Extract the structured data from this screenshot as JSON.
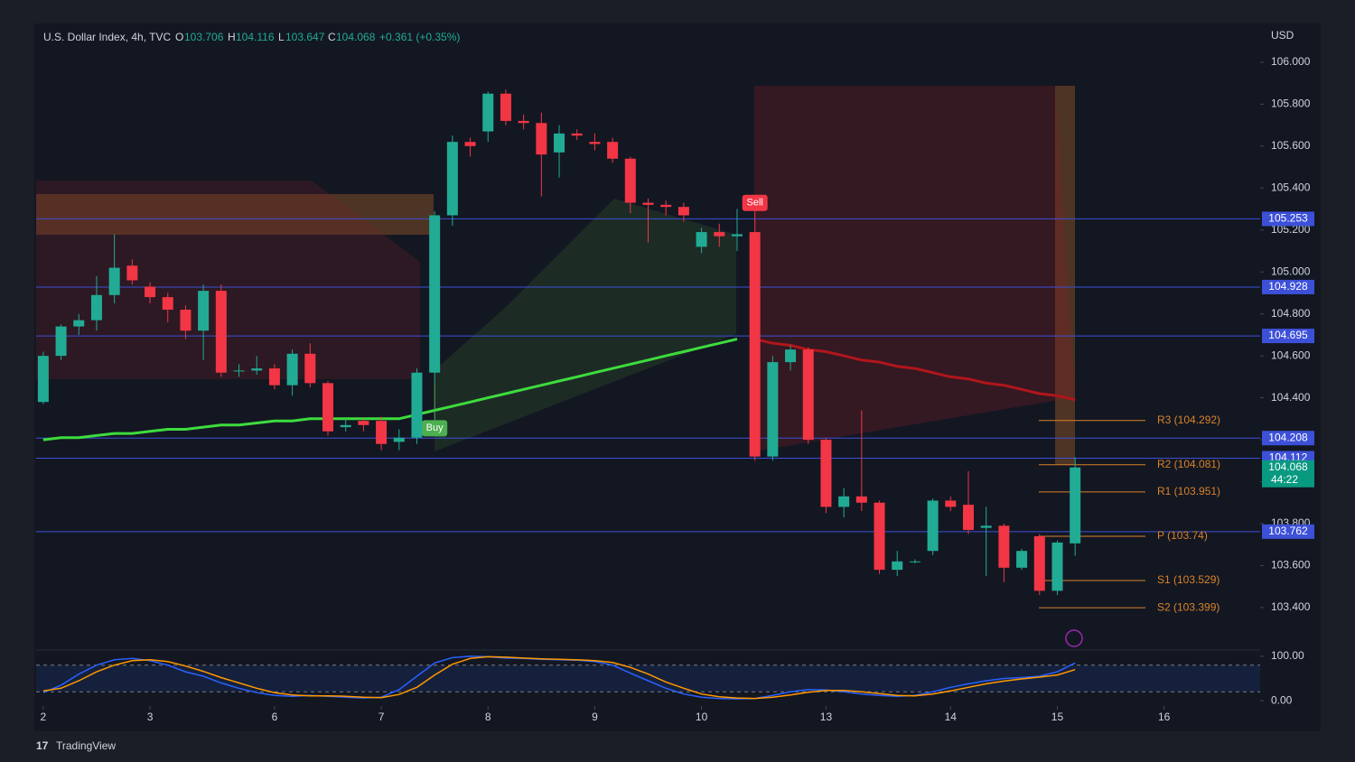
{
  "header": {
    "symbol": "U.S. Dollar Index, 4h, TVC",
    "open_label": "O",
    "open": "103.706",
    "high_label": "H",
    "high": "104.116",
    "low_label": "L",
    "low": "103.647",
    "close_label": "C",
    "close": "104.068",
    "change": "+0.361 (+0.35%)"
  },
  "footer": "TradingView",
  "chart_data": {
    "type": "candlestick",
    "currency": "USD",
    "up_color": "#22ab94",
    "down_color": "#f23645",
    "open": [
      104.38,
      104.6,
      104.74,
      104.77,
      104.89,
      105.03,
      104.93,
      104.88,
      104.82,
      104.72,
      104.91,
      104.53,
      104.53,
      104.54,
      104.46,
      104.61,
      104.47,
      104.26,
      104.29,
      104.29,
      104.19,
      104.21,
      104.52,
      105.27,
      105.62,
      105.67,
      105.85,
      105.72,
      105.71,
      105.57,
      105.66,
      105.62,
      105.62,
      105.54,
      105.33,
      105.32,
      105.31,
      105.12,
      105.19,
      105.17,
      105.19,
      104.12,
      104.57,
      104.63,
      104.2,
      103.88,
      103.93,
      103.9,
      103.58,
      103.62,
      103.67,
      103.91,
      103.89,
      103.78,
      103.79,
      103.59,
      103.74,
      103.48,
      103.706
    ],
    "high": [
      104.62,
      104.75,
      104.8,
      104.98,
      105.18,
      105.06,
      104.95,
      104.9,
      104.84,
      104.94,
      104.94,
      104.56,
      104.6,
      104.56,
      104.63,
      104.66,
      104.48,
      104.3,
      104.3,
      104.31,
      104.25,
      104.54,
      105.29,
      105.65,
      105.64,
      105.86,
      105.87,
      105.75,
      105.76,
      105.7,
      105.68,
      105.66,
      105.64,
      105.55,
      105.35,
      105.34,
      105.33,
      105.21,
      105.23,
      105.3,
      105.2,
      104.6,
      104.65,
      104.64,
      104.21,
      103.97,
      104.34,
      103.91,
      103.67,
      103.63,
      103.92,
      103.93,
      104.05,
      103.88,
      103.8,
      103.68,
      103.75,
      103.72,
      104.116
    ],
    "low": [
      104.37,
      104.58,
      104.7,
      104.72,
      104.85,
      104.94,
      104.85,
      104.76,
      104.68,
      104.58,
      104.5,
      104.5,
      104.51,
      104.44,
      104.41,
      104.45,
      104.22,
      104.24,
      104.24,
      104.15,
      104.15,
      104.18,
      104.47,
      105.22,
      105.55,
      105.62,
      105.7,
      105.68,
      105.36,
      105.45,
      105.63,
      105.58,
      105.52,
      105.28,
      105.14,
      105.27,
      105.24,
      105.09,
      105.12,
      105.1,
      104.1,
      104.1,
      104.53,
      104.18,
      103.85,
      103.83,
      103.86,
      103.56,
      103.55,
      103.61,
      103.65,
      103.86,
      103.75,
      103.55,
      103.52,
      103.58,
      103.46,
      103.46,
      103.647
    ],
    "close": [
      104.6,
      104.74,
      104.77,
      104.89,
      105.02,
      104.96,
      104.88,
      104.82,
      104.72,
      104.91,
      104.52,
      104.53,
      104.54,
      104.46,
      104.61,
      104.47,
      104.24,
      104.27,
      104.27,
      104.18,
      104.21,
      104.52,
      105.27,
      105.62,
      105.6,
      105.85,
      105.72,
      105.71,
      105.56,
      105.66,
      105.65,
      105.61,
      105.54,
      105.33,
      105.32,
      105.31,
      105.27,
      105.19,
      105.17,
      105.18,
      104.12,
      104.57,
      104.63,
      104.2,
      103.88,
      103.93,
      103.9,
      103.58,
      103.62,
      103.62,
      103.91,
      103.88,
      103.77,
      103.79,
      103.59,
      103.67,
      103.48,
      103.71,
      104.068
    ],
    "xlim": [
      -0.4,
      68.4
    ],
    "xticks": [
      {
        "value": 0,
        "label": "2"
      },
      {
        "value": 6,
        "label": "3"
      },
      {
        "value": 13,
        "label": "6"
      },
      {
        "value": 19,
        "label": "7"
      },
      {
        "value": 25,
        "label": "8"
      },
      {
        "value": 31,
        "label": "9"
      },
      {
        "value": 37,
        "label": "10"
      },
      {
        "value": 44,
        "label": "13"
      },
      {
        "value": 51,
        "label": "14"
      },
      {
        "value": 57,
        "label": "15"
      },
      {
        "value": 63,
        "label": "16"
      }
    ],
    "ylim": [
      103.206,
      106.176
    ],
    "yticks": [
      {
        "value": 103.4,
        "label": "103.400"
      },
      {
        "value": 103.6,
        "label": "103.600"
      },
      {
        "value": 103.8,
        "label": "103.800"
      },
      {
        "value": 104.0,
        "label": "104.000"
      },
      {
        "value": 104.2,
        "label": "104.200"
      },
      {
        "value": 104.4,
        "label": "104.400"
      },
      {
        "value": 104.6,
        "label": "104.600"
      },
      {
        "value": 104.8,
        "label": "104.800"
      },
      {
        "value": 105.0,
        "label": "105.000"
      },
      {
        "value": 105.2,
        "label": "105.200"
      },
      {
        "value": 105.4,
        "label": "105.400"
      },
      {
        "value": 105.6,
        "label": "105.600"
      },
      {
        "value": 105.8,
        "label": "105.800"
      },
      {
        "value": 106.0,
        "label": "106.000"
      }
    ],
    "series": [
      {
        "color": "#3ddc3d",
        "values": [
          104.2,
          104.21,
          104.21,
          104.22,
          104.23,
          104.23,
          104.24,
          104.25,
          104.25,
          104.26,
          104.27,
          104.27,
          104.28,
          104.29,
          104.29,
          104.3,
          104.3,
          104.3,
          104.3,
          104.3,
          104.3,
          104.32,
          104.34,
          104.36,
          104.38,
          104.4,
          104.42,
          104.44,
          104.46,
          104.48,
          104.5,
          104.52,
          104.54,
          104.56,
          104.58,
          104.6,
          104.62,
          104.64,
          104.66,
          104.68,
          null,
          null,
          null,
          null,
          null,
          null,
          null,
          null,
          null,
          null,
          null,
          null,
          null,
          null,
          null,
          null,
          null,
          null,
          null
        ]
      },
      {
        "color": "#b0161b",
        "values": [
          null,
          null,
          null,
          null,
          null,
          null,
          null,
          null,
          null,
          null,
          null,
          null,
          null,
          null,
          null,
          null,
          null,
          null,
          null,
          null,
          null,
          null,
          null,
          null,
          null,
          null,
          null,
          null,
          null,
          null,
          null,
          null,
          null,
          null,
          null,
          null,
          null,
          null,
          null,
          null,
          104.68,
          104.66,
          104.65,
          104.63,
          104.62,
          104.6,
          104.58,
          104.57,
          104.55,
          104.54,
          104.52,
          104.5,
          104.49,
          104.47,
          104.46,
          104.44,
          104.42,
          104.41,
          104.39
        ]
      }
    ],
    "price_lines": {
      "color": "#3d50d8",
      "values": [
        105.253,
        104.928,
        104.695,
        104.208,
        104.112,
        103.762
      ]
    },
    "last_price": {
      "value": 104.068,
      "countdown": "44:22",
      "color": "#089981"
    },
    "pivot_color": "#d9822b",
    "pivots": [
      {
        "label": "R3 (104.292)",
        "value": 104.292
      },
      {
        "label": "R2 (104.081)",
        "value": 104.081
      },
      {
        "label": "R1 (103.951)",
        "value": 103.951
      },
      {
        "label": "P (103.74)",
        "value": 103.74
      },
      {
        "label": "S1 (103.529)",
        "value": 103.529
      },
      {
        "label": "S2 (103.399)",
        "value": 103.399
      }
    ],
    "markers": [
      {
        "label": "Sell",
        "x": 40,
        "color": "#f23645"
      },
      {
        "label": "Buy",
        "x": 22,
        "color": "#4caf50"
      }
    ],
    "oscillator": {
      "ylim": [
        -12,
        114
      ],
      "yticks": [
        {
          "value": 100,
          "label": "100.00"
        },
        {
          "value": 0,
          "label": "0.00"
        }
      ],
      "levels": [
        20,
        80
      ],
      "series": [
        {
          "color": "#2962ff",
          "values": [
            18,
            35,
            60,
            80,
            92,
            95,
            90,
            80,
            65,
            55,
            40,
            28,
            18,
            12,
            10,
            12,
            10,
            8,
            6,
            8,
            25,
            55,
            85,
            97,
            100,
            99,
            96,
            95,
            93,
            92,
            91,
            88,
            80,
            62,
            45,
            28,
            15,
            8,
            5,
            4,
            5,
            12,
            20,
            25,
            24,
            20,
            15,
            12,
            10,
            12,
            20,
            30,
            38,
            45,
            50,
            52,
            55,
            65,
            85
          ]
        },
        {
          "color": "#ff9800",
          "values": [
            22,
            28,
            45,
            65,
            80,
            90,
            92,
            88,
            78,
            66,
            52,
            40,
            28,
            18,
            13,
            11,
            11,
            10,
            8,
            7,
            14,
            30,
            58,
            82,
            95,
            99,
            98,
            96,
            94,
            93,
            92,
            90,
            86,
            75,
            60,
            42,
            28,
            15,
            9,
            6,
            5,
            8,
            13,
            19,
            23,
            23,
            20,
            16,
            12,
            11,
            15,
            22,
            30,
            38,
            44,
            49,
            53,
            58,
            70
          ]
        }
      ]
    }
  }
}
